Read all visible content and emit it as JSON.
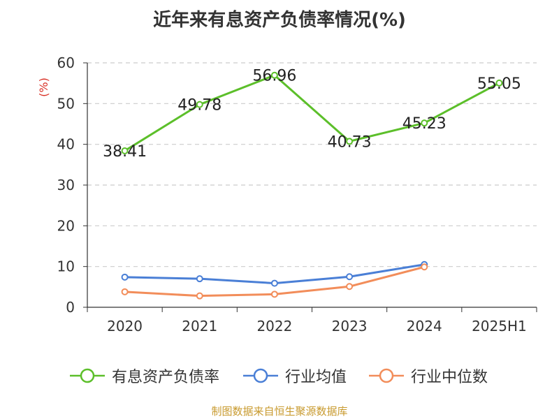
{
  "title": "近年来有息资产负债率情况(%)",
  "source": "制图数据来自恒生聚源数据库",
  "chart_data": {
    "type": "line",
    "title": "近年来有息资产负债率情况(%)",
    "ylabel": "(%)",
    "xlabel": "",
    "categories": [
      "2020",
      "2021",
      "2022",
      "2023",
      "2024",
      "2025H1"
    ],
    "ylim": [
      0,
      60
    ],
    "yticks": [
      0,
      10,
      20,
      30,
      40,
      50,
      60
    ],
    "grid": true,
    "legend_position": "bottom",
    "series": [
      {
        "name": "有息资产负债率",
        "color": "#5cbf2a",
        "values": [
          38.41,
          49.78,
          56.96,
          40.73,
          45.23,
          55.05
        ],
        "show_labels": true
      },
      {
        "name": "行业均值",
        "color": "#4a7fd6",
        "values": [
          7.4,
          7.0,
          5.9,
          7.5,
          10.5,
          null
        ],
        "show_labels": false
      },
      {
        "name": "行业中位数",
        "color": "#f28d5a",
        "values": [
          3.8,
          2.8,
          3.2,
          5.1,
          9.9,
          null
        ],
        "show_labels": false
      }
    ]
  }
}
